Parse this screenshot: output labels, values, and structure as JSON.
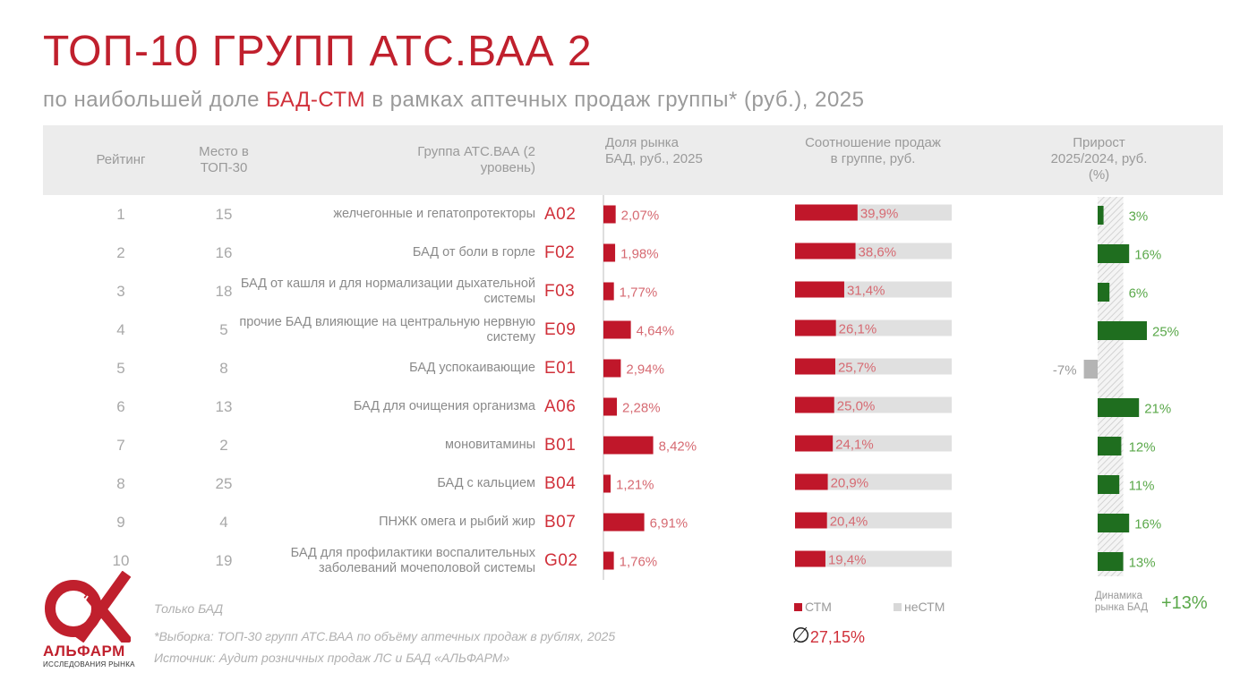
{
  "title": "ТОП-10 ГРУПП АТС.ВАА 2",
  "subtitle": {
    "before": "по наибольшей доле ",
    "accent": "БАД-СТМ",
    "after": " в рамках аптечных продаж группы* (руб.), 2025"
  },
  "headers": {
    "rank": "Рейтинг",
    "place": "Место в ТОП-30",
    "group": "Группа АТС.ВАА (2 уровень)",
    "share": "Доля рынка БАД, руб., 2025",
    "ratio": "Соотношение продаж в группе, руб.",
    "growth": "Прирост 2025/2024, руб. (%)"
  },
  "rows": [
    {
      "rank": "1",
      "place": "15",
      "group": "желчегонные и гепатопротекторы",
      "code": "A02",
      "share_label": "2,07%",
      "ratio_label": "39,9%",
      "growth_label": "3%"
    },
    {
      "rank": "2",
      "place": "16",
      "group": "БАД от боли в горле",
      "code": "F02",
      "share_label": "1,98%",
      "ratio_label": "38,6%",
      "growth_label": "16%"
    },
    {
      "rank": "3",
      "place": "18",
      "group": "БАД от кашля и для нормализации дыхательной системы",
      "code": "F03",
      "share_label": "1,77%",
      "ratio_label": "31,4%",
      "growth_label": "6%"
    },
    {
      "rank": "4",
      "place": "5",
      "group": "прочие БАД влияющие на центральную нервную систему",
      "code": "E09",
      "share_label": "4,64%",
      "ratio_label": "26,1%",
      "growth_label": "25%"
    },
    {
      "rank": "5",
      "place": "8",
      "group": "БАД успокаивающие",
      "code": "E01",
      "share_label": "2,94%",
      "ratio_label": "25,7%",
      "growth_label": "-7%"
    },
    {
      "rank": "6",
      "place": "13",
      "group": "БАД для очищения организма",
      "code": "A06",
      "share_label": "2,28%",
      "ratio_label": "25,0%",
      "growth_label": "21%"
    },
    {
      "rank": "7",
      "place": "2",
      "group": "моновитамины",
      "code": "B01",
      "share_label": "8,42%",
      "ratio_label": "24,1%",
      "growth_label": "12%"
    },
    {
      "rank": "8",
      "place": "25",
      "group": "БАД с кальцием",
      "code": "B04",
      "share_label": "1,21%",
      "ratio_label": "20,9%",
      "growth_label": "11%"
    },
    {
      "rank": "9",
      "place": "4",
      "group": "ПНЖК омега и рыбий жир",
      "code": "B07",
      "share_label": "6,91%",
      "ratio_label": "20,4%",
      "growth_label": "16%"
    },
    {
      "rank": "10",
      "place": "19",
      "group": "БАД для профилактики воспалительных заболеваний мочеполовой системы",
      "code": "G02",
      "share_label": "1,76%",
      "ratio_label": "19,4%",
      "growth_label": "13%"
    }
  ],
  "legend": {
    "stm": "СТМ",
    "nonstm": "неСТМ"
  },
  "average": "27,15%",
  "average_symbol": "∅",
  "dynamics": {
    "label": "Динамика рынка БАД",
    "value": "+13%"
  },
  "footnotes": {
    "only": "Только БАД",
    "sample": "*Выборка: ТОП-30 групп АТС.ВАА по объёму аптечных продаж в рублях, 2025",
    "source": "Источник: Аудит розничных продаж ЛС и БАД «АЛЬФАРМ»"
  },
  "logo": {
    "name": "АЛЬФАРМ",
    "tagline": "ИССЛЕДОВАНИЯ РЫНКА"
  },
  "colors": {
    "accent": "#c0202d",
    "stm": "#c0172a",
    "nonstm": "#e0e0e0",
    "growth_pos": "#1f6e1f",
    "growth_neg": "#b4b4b4",
    "growth_label": "#5aa84a",
    "share_label": "#d66a72"
  },
  "chart_data": [
    {
      "type": "bar",
      "title": "Доля рынка БАД, руб., 2025",
      "categories": [
        "A02",
        "F02",
        "F03",
        "E09",
        "E01",
        "A06",
        "B01",
        "B04",
        "B07",
        "G02"
      ],
      "values": [
        2.07,
        1.98,
        1.77,
        4.64,
        2.94,
        2.28,
        8.42,
        1.21,
        6.91,
        1.76
      ],
      "unit": "%",
      "orientation": "horizontal"
    },
    {
      "type": "bar",
      "title": "Соотношение продаж в группе, руб.",
      "categories": [
        "A02",
        "F02",
        "F03",
        "E09",
        "E01",
        "A06",
        "B01",
        "B04",
        "B07",
        "G02"
      ],
      "series": [
        {
          "name": "СТМ",
          "values": [
            39.9,
            38.6,
            31.4,
            26.1,
            25.7,
            25.0,
            24.1,
            20.9,
            20.4,
            19.4
          ]
        },
        {
          "name": "неСТМ",
          "values": [
            60.1,
            61.4,
            68.6,
            73.9,
            74.3,
            75.0,
            75.9,
            79.1,
            79.6,
            80.6
          ]
        }
      ],
      "stacked": true,
      "unit": "%",
      "xlim": [
        0,
        100
      ],
      "average": 27.15
    },
    {
      "type": "bar",
      "title": "Прирост 2025/2024, руб. (%)",
      "categories": [
        "A02",
        "F02",
        "F03",
        "E09",
        "E01",
        "A06",
        "B01",
        "B04",
        "B07",
        "G02"
      ],
      "values": [
        3,
        16,
        6,
        25,
        -7,
        21,
        12,
        11,
        16,
        13
      ],
      "unit": "%",
      "reference": {
        "name": "Динамика рынка БАД",
        "value": 13
      }
    }
  ]
}
